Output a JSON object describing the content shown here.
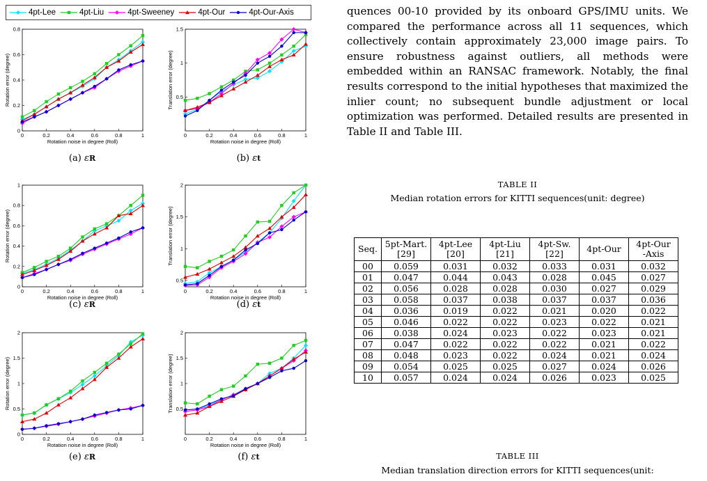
{
  "legend": [
    {
      "name": "4pt-Lee",
      "color": "#00e5ff",
      "marker": "diamond"
    },
    {
      "name": "4pt-Liu",
      "color": "#22cc22",
      "marker": "square"
    },
    {
      "name": "4pt-Sweeney",
      "color": "#ff00ff",
      "marker": "diamond"
    },
    {
      "name": "4pt-Our",
      "color": "#dd0000",
      "marker": "triangle"
    },
    {
      "name": "4pt-Our-Axis",
      "color": "#0000cc",
      "marker": "dot"
    }
  ],
  "captions": {
    "a": {
      "label": "(a)",
      "sym": "ε",
      "sub": "R"
    },
    "b": {
      "label": "(b)",
      "sym": "ε",
      "sub": "t"
    },
    "c": {
      "label": "(c)",
      "sym": "ε",
      "sub": "R"
    },
    "d": {
      "label": "(d)",
      "sym": "ε",
      "sub": "t"
    },
    "e": {
      "label": "(e)",
      "sym": "ε",
      "sub": "R"
    },
    "f": {
      "label": "(f)",
      "sym": "ε",
      "sub": "t"
    }
  },
  "paragraph": "quences 00-10 provided by its onboard GPS/IMU units. We compared the performance across all 11 sequences, which collectively contain approximately 23,000 image pairs. To ensure robustness against outliers, all methods were embedded within an RANSAC framework. Notably, the final results correspond to the initial hypotheses that maximized the inlier count; no subsequent bundle adjustment or local optimization was performed. Detailed results are presented in Table II and Table III.",
  "table2": {
    "label": "TABLE II",
    "caption": "Median rotation errors for KITTI sequences(unit: degree)",
    "headers": [
      [
        "Seq.",
        ""
      ],
      [
        "5pt-Mart.",
        "[29]"
      ],
      [
        "4pt-Lee",
        "[20]"
      ],
      [
        "4pt-Liu",
        "[21]"
      ],
      [
        "4pt-Sw.",
        "[22]"
      ],
      [
        "4pt-Our",
        ""
      ],
      [
        "4pt-Our",
        "-Axis"
      ]
    ],
    "rows": [
      [
        "00",
        "0.059",
        "0.031",
        "0.032",
        "0.033",
        "0.031",
        "0.032"
      ],
      [
        "01",
        "0.047",
        "0.044",
        "0.043",
        "0.028",
        "0.045",
        "0.027"
      ],
      [
        "02",
        "0.056",
        "0.028",
        "0.028",
        "0.030",
        "0.027",
        "0.029"
      ],
      [
        "03",
        "0.058",
        "0.037",
        "0.038",
        "0.037",
        "0.037",
        "0.036"
      ],
      [
        "04",
        "0.036",
        "0.019",
        "0.022",
        "0.021",
        "0.020",
        "0.022"
      ],
      [
        "05",
        "0.046",
        "0.022",
        "0.022",
        "0.023",
        "0.022",
        "0.021"
      ],
      [
        "06",
        "0.038",
        "0.024",
        "0.023",
        "0.022",
        "0.023",
        "0.021"
      ],
      [
        "07",
        "0.047",
        "0.022",
        "0.022",
        "0.022",
        "0.021",
        "0.022"
      ],
      [
        "08",
        "0.048",
        "0.023",
        "0.022",
        "0.024",
        "0.021",
        "0.024"
      ],
      [
        "09",
        "0.054",
        "0.025",
        "0.025",
        "0.027",
        "0.024",
        "0.026"
      ],
      [
        "10",
        "0.057",
        "0.024",
        "0.024",
        "0.026",
        "0.023",
        "0.025"
      ]
    ]
  },
  "table3": {
    "label": "TABLE III",
    "caption": "Median translation direction errors for KITTI sequences(unit:"
  },
  "chart_data": [
    {
      "id": "a",
      "type": "line",
      "xlabel": "Rotation noise in degree (Roll)",
      "ylabel": "Rotation error (degree)",
      "xlim": [
        0,
        1
      ],
      "ylim": [
        0,
        0.8
      ],
      "xticks": [
        0,
        0.2,
        0.4,
        0.6,
        0.8,
        1
      ],
      "yticks": [
        0,
        0.2,
        0.4,
        0.6,
        0.8
      ],
      "x": [
        0,
        0.1,
        0.2,
        0.3,
        0.4,
        0.5,
        0.6,
        0.7,
        0.8,
        0.9,
        1
      ],
      "series": [
        {
          "name": "4pt-Lee",
          "values": [
            0.09,
            0.13,
            0.19,
            0.25,
            0.3,
            0.35,
            0.41,
            0.5,
            0.56,
            0.63,
            0.7
          ]
        },
        {
          "name": "4pt-Liu",
          "values": [
            0.11,
            0.16,
            0.23,
            0.29,
            0.34,
            0.39,
            0.45,
            0.53,
            0.6,
            0.67,
            0.75
          ]
        },
        {
          "name": "4pt-Sweeney",
          "values": [
            0.06,
            0.11,
            0.15,
            0.2,
            0.25,
            0.3,
            0.34,
            0.41,
            0.47,
            0.51,
            0.55
          ]
        },
        {
          "name": "4pt-Our",
          "values": [
            0.08,
            0.13,
            0.19,
            0.25,
            0.3,
            0.36,
            0.42,
            0.5,
            0.55,
            0.62,
            0.68
          ]
        },
        {
          "name": "4pt-Our-Axis",
          "values": [
            0.07,
            0.11,
            0.15,
            0.2,
            0.25,
            0.3,
            0.35,
            0.41,
            0.48,
            0.52,
            0.55
          ]
        }
      ]
    },
    {
      "id": "b",
      "type": "line",
      "xlabel": "Rotation noise in degree (Roll)",
      "ylabel": "Translation error (degree)",
      "xlim": [
        0,
        1
      ],
      "ylim": [
        0,
        1.5
      ],
      "xticks": [
        0,
        0.2,
        0.4,
        0.6,
        0.8,
        1
      ],
      "yticks": [
        0.5,
        1,
        1.5
      ],
      "x": [
        0,
        0.1,
        0.2,
        0.3,
        0.4,
        0.5,
        0.6,
        0.7,
        0.8,
        0.9,
        1
      ],
      "series": [
        {
          "name": "4pt-Lee",
          "values": [
            0.25,
            0.32,
            0.45,
            0.58,
            0.68,
            0.76,
            0.78,
            0.88,
            1.02,
            1.18,
            1.25
          ]
        },
        {
          "name": "4pt-Liu",
          "values": [
            0.45,
            0.48,
            0.55,
            0.65,
            0.75,
            0.88,
            0.9,
            1.0,
            1.12,
            1.25,
            1.42
          ]
        },
        {
          "name": "4pt-Sweeney",
          "values": [
            0.3,
            0.33,
            0.42,
            0.55,
            0.7,
            0.85,
            1.05,
            1.15,
            1.35,
            1.55,
            1.45
          ]
        },
        {
          "name": "4pt-Our",
          "values": [
            0.3,
            0.35,
            0.42,
            0.52,
            0.62,
            0.72,
            0.82,
            0.95,
            1.05,
            1.12,
            1.28
          ]
        },
        {
          "name": "4pt-Our-Axis",
          "values": [
            0.22,
            0.3,
            0.45,
            0.6,
            0.72,
            0.82,
            1.0,
            1.1,
            1.25,
            1.45,
            1.45
          ]
        }
      ]
    },
    {
      "id": "c",
      "type": "line",
      "xlabel": "Rotation noise in degree (Roll)",
      "ylabel": "Rotation error (degree)",
      "xlim": [
        0,
        1
      ],
      "ylim": [
        0,
        1
      ],
      "xticks": [
        0,
        0.2,
        0.4,
        0.6,
        0.8,
        1
      ],
      "yticks": [
        0,
        0.2,
        0.4,
        0.6,
        0.8,
        1
      ],
      "x": [
        0,
        0.1,
        0.2,
        0.3,
        0.4,
        0.5,
        0.6,
        0.7,
        0.8,
        0.9,
        1
      ],
      "series": [
        {
          "name": "4pt-Lee",
          "values": [
            0.13,
            0.17,
            0.22,
            0.28,
            0.36,
            0.45,
            0.55,
            0.6,
            0.65,
            0.75,
            0.82
          ]
        },
        {
          "name": "4pt-Liu",
          "values": [
            0.14,
            0.19,
            0.25,
            0.3,
            0.38,
            0.49,
            0.57,
            0.62,
            0.7,
            0.8,
            0.9
          ]
        },
        {
          "name": "4pt-Sweeney",
          "values": [
            0.09,
            0.13,
            0.17,
            0.22,
            0.26,
            0.32,
            0.37,
            0.42,
            0.47,
            0.52,
            0.58
          ]
        },
        {
          "name": "4pt-Our",
          "values": [
            0.12,
            0.16,
            0.21,
            0.27,
            0.35,
            0.45,
            0.52,
            0.58,
            0.7,
            0.72,
            0.8
          ]
        },
        {
          "name": "4pt-Our-Axis",
          "values": [
            0.09,
            0.12,
            0.17,
            0.22,
            0.27,
            0.33,
            0.38,
            0.43,
            0.48,
            0.54,
            0.58
          ]
        }
      ]
    },
    {
      "id": "d",
      "type": "line",
      "xlabel": "Rotation noise in degree (Roll)",
      "ylabel": "Translation error (degree)",
      "xlim": [
        0,
        1
      ],
      "ylim": [
        0.4,
        2
      ],
      "xticks": [
        0,
        0.2,
        0.4,
        0.6,
        0.8,
        1
      ],
      "yticks": [
        0.5,
        1,
        1.5,
        2
      ],
      "x": [
        0,
        0.1,
        0.2,
        0.3,
        0.4,
        0.5,
        0.6,
        0.7,
        0.8,
        0.9,
        1
      ],
      "series": [
        {
          "name": "4pt-Lee",
          "values": [
            0.45,
            0.48,
            0.62,
            0.72,
            0.82,
            0.95,
            1.1,
            1.25,
            1.48,
            1.75,
            2.0
          ]
        },
        {
          "name": "4pt-Liu",
          "values": [
            0.72,
            0.7,
            0.8,
            0.88,
            0.98,
            1.2,
            1.42,
            1.43,
            1.68,
            1.88,
            2.0
          ]
        },
        {
          "name": "4pt-Sweeney",
          "values": [
            0.42,
            0.43,
            0.55,
            0.7,
            0.8,
            0.92,
            1.1,
            1.18,
            1.35,
            1.5,
            1.58
          ]
        },
        {
          "name": "4pt-Our",
          "values": [
            0.55,
            0.6,
            0.68,
            0.78,
            0.88,
            1.02,
            1.2,
            1.32,
            1.5,
            1.65,
            1.85
          ]
        },
        {
          "name": "4pt-Our-Axis",
          "values": [
            0.43,
            0.45,
            0.58,
            0.72,
            0.82,
            0.98,
            1.08,
            1.25,
            1.3,
            1.45,
            1.58
          ]
        }
      ]
    },
    {
      "id": "e",
      "type": "line",
      "xlabel": "Rotation noise in degree (Roll)",
      "ylabel": "Rotation error (degree)",
      "xlim": [
        0,
        1
      ],
      "ylim": [
        0,
        2
      ],
      "xticks": [
        0,
        0.2,
        0.4,
        0.6,
        0.8,
        1
      ],
      "yticks": [
        0,
        0.5,
        1,
        1.5,
        2
      ],
      "x": [
        0,
        0.1,
        0.2,
        0.3,
        0.4,
        0.5,
        0.6,
        0.7,
        0.8,
        0.9,
        1
      ],
      "series": [
        {
          "name": "4pt-Lee",
          "values": [
            0.38,
            0.42,
            0.58,
            0.7,
            0.82,
            0.98,
            1.15,
            1.35,
            1.55,
            1.82,
            1.95
          ]
        },
        {
          "name": "4pt-Liu",
          "values": [
            0.38,
            0.42,
            0.58,
            0.7,
            0.85,
            1.05,
            1.22,
            1.4,
            1.58,
            1.78,
            1.98
          ]
        },
        {
          "name": "4pt-Sweeney",
          "values": [
            0.1,
            0.12,
            0.16,
            0.2,
            0.25,
            0.3,
            0.36,
            0.42,
            0.48,
            0.52,
            0.57
          ]
        },
        {
          "name": "4pt-Our",
          "values": [
            0.25,
            0.3,
            0.42,
            0.58,
            0.72,
            0.9,
            1.08,
            1.32,
            1.5,
            1.72,
            1.88
          ]
        },
        {
          "name": "4pt-Our-Axis",
          "values": [
            0.1,
            0.12,
            0.17,
            0.21,
            0.25,
            0.3,
            0.38,
            0.43,
            0.48,
            0.5,
            0.57
          ]
        }
      ]
    },
    {
      "id": "f",
      "type": "line",
      "xlabel": "Rotation noise in degree (Roll)",
      "ylabel": "Translation error (degree)",
      "xlim": [
        0,
        1
      ],
      "ylim": [
        0,
        2
      ],
      "xticks": [
        0,
        0.2,
        0.4,
        0.6,
        0.8,
        1
      ],
      "yticks": [
        0.5,
        1,
        1.5,
        2
      ],
      "x": [
        0,
        0.1,
        0.2,
        0.3,
        0.4,
        0.5,
        0.6,
        0.7,
        0.8,
        0.9,
        1
      ],
      "series": [
        {
          "name": "4pt-Lee",
          "values": [
            0.45,
            0.48,
            0.58,
            0.68,
            0.78,
            0.9,
            1.0,
            1.2,
            1.3,
            1.5,
            1.75
          ]
        },
        {
          "name": "4pt-Liu",
          "values": [
            0.62,
            0.6,
            0.75,
            0.88,
            0.95,
            1.15,
            1.38,
            1.4,
            1.5,
            1.75,
            1.85
          ]
        },
        {
          "name": "4pt-Sweeney",
          "values": [
            0.45,
            0.48,
            0.55,
            0.68,
            0.78,
            0.88,
            1.0,
            1.15,
            1.3,
            1.45,
            1.65
          ]
        },
        {
          "name": "4pt-Our",
          "values": [
            0.38,
            0.42,
            0.55,
            0.65,
            0.75,
            0.88,
            1.0,
            1.15,
            1.3,
            1.48,
            1.62
          ]
        },
        {
          "name": "4pt-Our-Axis",
          "values": [
            0.48,
            0.5,
            0.6,
            0.7,
            0.76,
            0.9,
            1.0,
            1.12,
            1.25,
            1.3,
            1.45
          ]
        }
      ]
    }
  ]
}
